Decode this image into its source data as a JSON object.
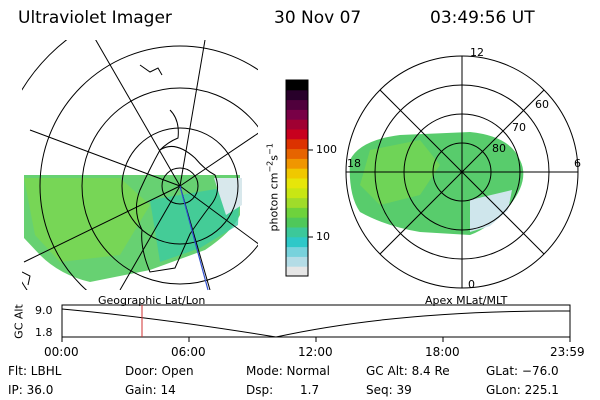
{
  "header": {
    "title": "Ultraviolet Imager",
    "date": "30 Nov 07",
    "time": "03:49:56 UT"
  },
  "left_panel": {
    "label": "Geographic Lat/Lon"
  },
  "right_panel": {
    "label": "Apex MLat/MLT",
    "mlt_labels": {
      "top": "12",
      "left": "18",
      "right": "6",
      "bottom": "0"
    },
    "lat_labels": [
      "60",
      "70",
      "80"
    ]
  },
  "colorbar": {
    "unit_label": "photon cm",
    "unit_sup1": "−2",
    "unit_mid": "s",
    "unit_sup2": "−1",
    "ticks": [
      "100",
      "10"
    ],
    "colors": [
      "#e6e6e6",
      "#b4dce6",
      "#78d2dc",
      "#2ec8c8",
      "#3cc89a",
      "#4fc85a",
      "#6ed23c",
      "#a0dc2a",
      "#c8e614",
      "#e6e60a",
      "#f0c800",
      "#f09600",
      "#e66400",
      "#dc3200",
      "#c8001e",
      "#a00032",
      "#780046",
      "#50003c",
      "#28002a",
      "#000000"
    ]
  },
  "timeline": {
    "axis_label": "GC Alt",
    "y_ticks": [
      "9.0",
      "1.8"
    ],
    "x_ticks": [
      "00:00",
      "06:00",
      "12:00",
      "18:00",
      "23:59"
    ],
    "marker_time": "03:49:56"
  },
  "info": {
    "row1": {
      "flt": "Flt: LBHL",
      "door": "Door: Open",
      "mode": "Mode: Normal",
      "gcalt": "GC Alt: 8.4 Re",
      "glat": "GLat: −76.0"
    },
    "row2": {
      "ip": "IP: 36.0",
      "gain": "Gain: 14",
      "dsp_label": "Dsp:",
      "dsp_value": "1.7",
      "seq": "Seq: 39",
      "glon": "GLon: 225.1"
    }
  }
}
